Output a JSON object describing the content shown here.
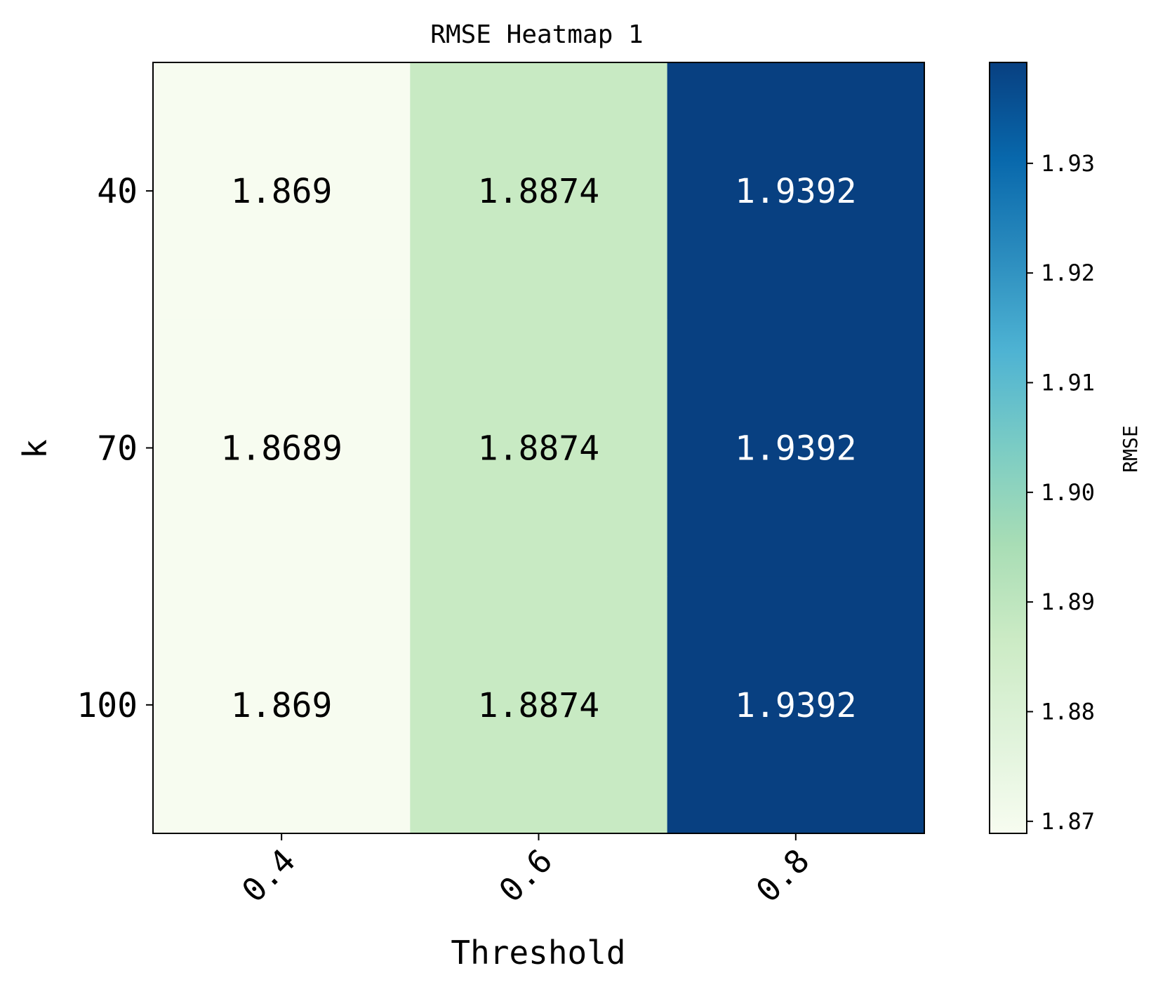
{
  "chart_data": {
    "type": "heatmap",
    "title": "RMSE Heatmap 1",
    "xlabel": "Threshold",
    "ylabel": "k",
    "x_categories": [
      "0.4",
      "0.6",
      "0.8"
    ],
    "y_categories": [
      "40",
      "70",
      "100"
    ],
    "values": [
      [
        1.869,
        1.8874,
        1.9392
      ],
      [
        1.8689,
        1.8874,
        1.9392
      ],
      [
        1.869,
        1.8874,
        1.9392
      ]
    ],
    "cell_labels": [
      [
        "1.869",
        "1.8874",
        "1.9392"
      ],
      [
        "1.8689",
        "1.8874",
        "1.9392"
      ],
      [
        "1.869",
        "1.8874",
        "1.9392"
      ]
    ],
    "colormap": "GnBu",
    "colormap_stops": [
      "#f7fcf0",
      "#e0f3db",
      "#ccebc5",
      "#a8ddb5",
      "#7bccc4",
      "#4eb3d3",
      "#2b8cbe",
      "#0868ac",
      "#084081"
    ],
    "colorbar": {
      "label": "RMSE",
      "range": [
        1.8689,
        1.9392
      ],
      "ticks": [
        1.87,
        1.88,
        1.89,
        1.9,
        1.91,
        1.92,
        1.93
      ],
      "tick_labels": [
        "1.87",
        "1.88",
        "1.89",
        "1.90",
        "1.91",
        "1.92",
        "1.93"
      ]
    },
    "grid": false
  }
}
